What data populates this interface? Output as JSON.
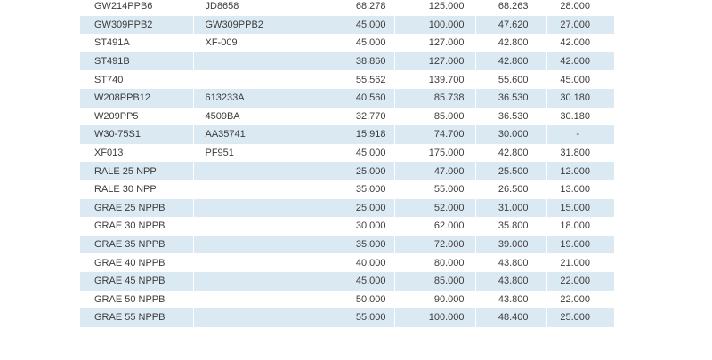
{
  "rows": [
    {
      "part": "GW214PPB6",
      "ref": "JD8658",
      "d": "68.278",
      "D": "125.000",
      "B": "68.263",
      "C": "28.000"
    },
    {
      "part": "GW309PPB2",
      "ref": "GW309PPB2",
      "d": "45.000",
      "D": "100.000",
      "B": "47.620",
      "C": "27.000"
    },
    {
      "part": "ST491A",
      "ref": "XF-009",
      "d": "45.000",
      "D": "127.000",
      "B": "42.800",
      "C": "42.000"
    },
    {
      "part": "ST491B",
      "ref": "",
      "d": "38.860",
      "D": "127.000",
      "B": "42.800",
      "C": "42.000"
    },
    {
      "part": "ST740",
      "ref": "",
      "d": "55.562",
      "D": "139.700",
      "B": "55.600",
      "C": "45.000"
    },
    {
      "part": "W208PPB12",
      "ref": "613233A",
      "d": "40.560",
      "D": "85.738",
      "B": "36.530",
      "C": "30.180"
    },
    {
      "part": "W209PP5",
      "ref": "4509BA",
      "d": "32.770",
      "D": "85.000",
      "B": "36.530",
      "C": "30.180"
    },
    {
      "part": "W30-75S1",
      "ref": "AA35741",
      "d": "15.918",
      "D": "74.700",
      "B": "30.000",
      "C": "-"
    },
    {
      "part": "XF013",
      "ref": "PF951",
      "d": "45.000",
      "D": "175.000",
      "B": "42.800",
      "C": "31.800"
    },
    {
      "part": "RALE 25 NPP",
      "ref": "",
      "d": "25.000",
      "D": "47.000",
      "B": "25.500",
      "C": "12.000"
    },
    {
      "part": "RALE 30 NPP",
      "ref": "",
      "d": "35.000",
      "D": "55.000",
      "B": "26.500",
      "C": "13.000"
    },
    {
      "part": "GRAE 25 NPPB",
      "ref": "",
      "d": "25.000",
      "D": "52.000",
      "B": "31.000",
      "C": "15.000"
    },
    {
      "part": "GRAE 30 NPPB",
      "ref": "",
      "d": "30.000",
      "D": "62.000",
      "B": "35.800",
      "C": "18.000"
    },
    {
      "part": "GRAE 35 NPPB",
      "ref": "",
      "d": "35.000",
      "D": "72.000",
      "B": "39.000",
      "C": "19.000"
    },
    {
      "part": "GRAE 40 NPPB",
      "ref": "",
      "d": "40.000",
      "D": "80.000",
      "B": "43.800",
      "C": "21.000"
    },
    {
      "part": "GRAE 45 NPPB",
      "ref": "",
      "d": "45.000",
      "D": "85.000",
      "B": "43.800",
      "C": "22.000"
    },
    {
      "part": "GRAE 50 NPPB",
      "ref": "",
      "d": "50.000",
      "D": "90.000",
      "B": "43.800",
      "C": "22.000"
    },
    {
      "part": "GRAE 55 NPPB",
      "ref": "",
      "d": "55.000",
      "D": "100.000",
      "B": "48.400",
      "C": "25.000"
    }
  ],
  "colors": {
    "stripe": "#dbe9f3",
    "text": "#3c3c3c",
    "background": "#ffffff"
  }
}
